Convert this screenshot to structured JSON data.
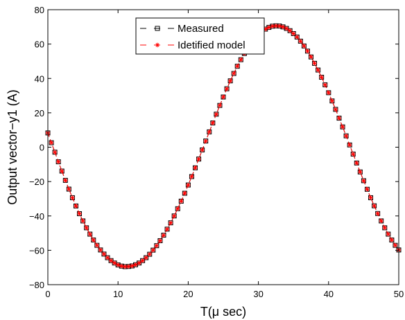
{
  "chart_data": {
    "type": "line",
    "title": "",
    "xlabel": "T(μ sec)",
    "ylabel": "Output vector−y1 (A)",
    "xlim": [
      0,
      50
    ],
    "ylim": [
      -80,
      80
    ],
    "xticks": [
      0,
      10,
      20,
      30,
      40,
      50
    ],
    "yticks": [
      -80,
      -60,
      -40,
      -20,
      0,
      20,
      40,
      60,
      80
    ],
    "xtick_labels": [
      "0",
      "10",
      "20",
      "30",
      "40",
      "50"
    ],
    "ytick_labels": [
      "−80",
      "−60",
      "−40",
      "−20",
      "0",
      "20",
      "40",
      "60",
      "80"
    ],
    "grid": false,
    "legend_position": "top-center",
    "x": [
      0,
      0.5,
      1,
      1.5,
      2,
      2.5,
      3,
      3.5,
      4,
      4.5,
      5,
      5.5,
      6,
      6.5,
      7,
      7.5,
      8,
      8.5,
      9,
      9.5,
      10,
      10.5,
      11,
      11.5,
      12,
      12.5,
      13,
      13.5,
      14,
      14.5,
      15,
      15.5,
      16,
      16.5,
      17,
      17.5,
      18,
      18.5,
      19,
      19.5,
      20,
      20.5,
      21,
      21.5,
      22,
      22.5,
      23,
      23.5,
      24,
      24.5,
      25,
      25.5,
      26,
      26.5,
      27,
      27.5,
      28,
      28.5,
      29,
      29.5,
      30,
      30.5,
      31,
      31.5,
      32,
      32.5,
      33,
      33.5,
      34,
      34.5,
      35,
      35.5,
      36,
      36.5,
      37,
      37.5,
      38,
      38.5,
      39,
      39.5,
      40,
      40.5,
      41,
      41.5,
      42,
      42.5,
      43,
      43.5,
      44,
      44.5,
      45,
      45.5,
      46,
      46.5,
      47,
      47.5,
      48,
      48.5,
      49,
      49.5,
      50
    ],
    "series": [
      {
        "name": "Measured",
        "color": "#000000",
        "line_style": "dashed",
        "marker": "square",
        "values": [
          8.3,
          2.6,
          -2.9,
          -8.5,
          -13.9,
          -19.3,
          -24.4,
          -29.4,
          -34.2,
          -38.7,
          -42.9,
          -46.9,
          -50.6,
          -54.0,
          -57.1,
          -59.8,
          -62.2,
          -64.3,
          -66.0,
          -67.4,
          -68.5,
          -69.2,
          -69.5,
          -69.4,
          -69.1,
          -68.4,
          -67.4,
          -66.0,
          -64.3,
          -62.3,
          -59.9,
          -57.3,
          -54.4,
          -51.2,
          -47.7,
          -44.0,
          -40.0,
          -35.8,
          -31.4,
          -26.8,
          -22.0,
          -17.1,
          -12.0,
          -6.9,
          -1.6,
          3.6,
          8.9,
          14.1,
          19.2,
          24.3,
          29.2,
          34.0,
          38.6,
          42.9,
          47.1,
          50.9,
          54.5,
          57.7,
          60.6,
          63.2,
          65.4,
          67.2,
          68.7,
          69.7,
          70.4,
          70.6,
          70.5,
          70.0,
          69.1,
          67.8,
          66.1,
          64.1,
          61.7,
          58.9,
          55.9,
          52.5,
          48.8,
          44.9,
          40.7,
          36.3,
          31.7,
          26.9,
          22.0,
          16.9,
          11.8,
          6.6,
          1.3,
          -4.0,
          -9.2,
          -14.4,
          -19.5,
          -24.5,
          -29.4,
          -34.1,
          -38.6,
          -42.9,
          -46.9,
          -50.6,
          -54.0,
          -57.1,
          -59.8
        ]
      },
      {
        "name": "Idetified model",
        "color": "#ff0000",
        "line_style": "dashed",
        "marker": "star",
        "values": [
          8.3,
          2.6,
          -2.9,
          -8.5,
          -13.9,
          -19.3,
          -24.4,
          -29.4,
          -34.2,
          -38.7,
          -42.9,
          -46.9,
          -50.6,
          -54.0,
          -57.1,
          -59.8,
          -62.2,
          -64.3,
          -66.0,
          -67.4,
          -68.5,
          -69.2,
          -69.5,
          -69.4,
          -69.1,
          -68.4,
          -67.4,
          -66.0,
          -64.3,
          -62.3,
          -59.9,
          -57.3,
          -54.4,
          -51.2,
          -47.7,
          -44.0,
          -40.0,
          -35.8,
          -31.4,
          -26.8,
          -22.0,
          -17.1,
          -12.0,
          -6.9,
          -1.6,
          3.6,
          8.9,
          14.1,
          19.2,
          24.3,
          29.2,
          34.0,
          38.6,
          42.9,
          47.1,
          50.9,
          54.5,
          57.7,
          60.6,
          63.2,
          65.4,
          67.2,
          68.7,
          69.7,
          70.4,
          70.6,
          70.5,
          70.0,
          69.1,
          67.8,
          66.1,
          64.1,
          61.7,
          58.9,
          55.9,
          52.5,
          48.8,
          44.9,
          40.7,
          36.3,
          31.7,
          26.9,
          22.0,
          16.9,
          11.8,
          6.6,
          1.3,
          -4.0,
          -9.2,
          -14.4,
          -19.5,
          -24.5,
          -29.4,
          -34.1,
          -38.6,
          -42.9,
          -46.9,
          -50.6,
          -54.0,
          -57.1,
          -59.8
        ]
      }
    ]
  }
}
